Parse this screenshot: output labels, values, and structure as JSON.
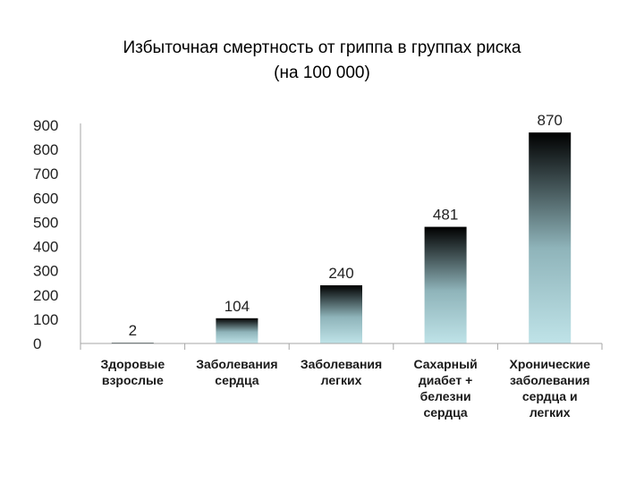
{
  "chart_data": {
    "type": "bar",
    "title": "Избыточная смертность от гриппа в группах риска",
    "subtitle": "(на 100 000)",
    "categories": [
      [
        "Здоровые",
        "взрослые"
      ],
      [
        "Заболевания",
        "сердца"
      ],
      [
        "Заболевания",
        "легких"
      ],
      [
        "Сахарный",
        "диабет +",
        "белезни",
        "сердца"
      ],
      [
        "Хронические",
        "заболевания",
        "сердца и",
        "легких"
      ]
    ],
    "values": [
      2,
      104,
      240,
      481,
      870
    ],
    "data_labels": [
      "2",
      "104",
      "240",
      "481",
      "870"
    ],
    "ylim": [
      0,
      900
    ],
    "yticks": [
      "0",
      "100",
      "200",
      "300",
      "400",
      "500",
      "600",
      "700",
      "800",
      "900"
    ],
    "xlabel": "",
    "ylabel": "",
    "grid": false,
    "legend": "none",
    "colors": {
      "bar_top": "#000000",
      "bar_bottom": "#bfe3e8",
      "axis": "#a6a6a6"
    }
  }
}
